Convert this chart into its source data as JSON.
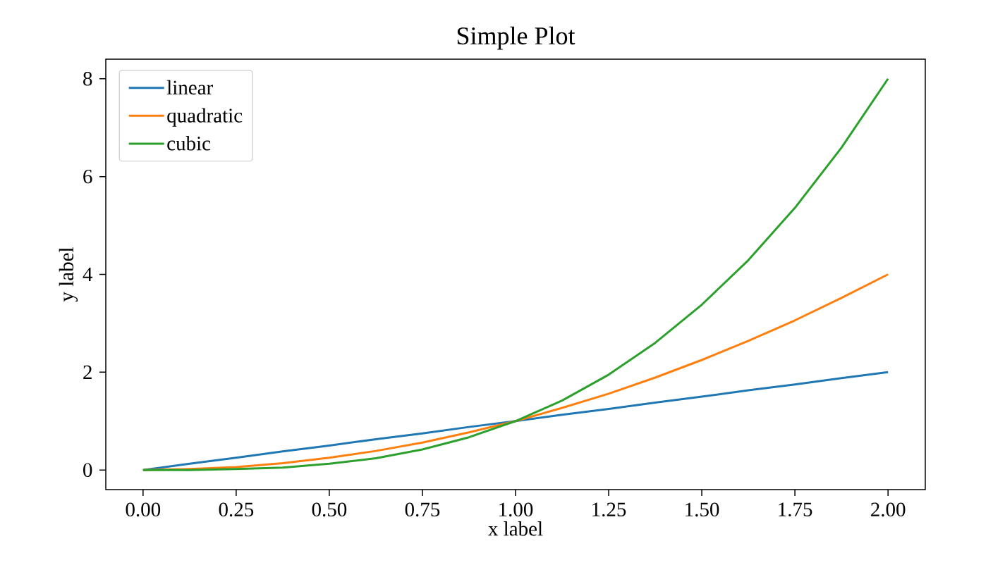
{
  "chart_data": {
    "type": "line",
    "title": "Simple Plot",
    "xlabel": "x label",
    "ylabel": "y label",
    "x": [
      0,
      0.125,
      0.25,
      0.375,
      0.5,
      0.625,
      0.75,
      0.875,
      1,
      1.125,
      1.25,
      1.375,
      1.5,
      1.625,
      1.75,
      1.875,
      2
    ],
    "series": [
      {
        "name": "linear",
        "color": "#1f77b4",
        "values": [
          0,
          0.13,
          0.25,
          0.38,
          0.5,
          0.63,
          0.75,
          0.88,
          1,
          1.13,
          1.25,
          1.38,
          1.5,
          1.63,
          1.75,
          1.88,
          2
        ]
      },
      {
        "name": "quadratic",
        "color": "#ff7f0e",
        "values": [
          0,
          0.02,
          0.06,
          0.14,
          0.25,
          0.39,
          0.56,
          0.77,
          1,
          1.27,
          1.56,
          1.89,
          2.25,
          2.64,
          3.06,
          3.52,
          4
        ]
      },
      {
        "name": "cubic",
        "color": "#2ca02c",
        "values": [
          0,
          0,
          0.02,
          0.05,
          0.13,
          0.24,
          0.42,
          0.67,
          1,
          1.42,
          1.95,
          2.6,
          3.38,
          4.29,
          5.36,
          6.59,
          8
        ]
      }
    ],
    "xlim": [
      -0.1,
      2.1
    ],
    "ylim": [
      -0.4,
      8.4
    ],
    "xticks": [
      {
        "value": 0,
        "label": "0.00"
      },
      {
        "value": 0.25,
        "label": "0.25"
      },
      {
        "value": 0.5,
        "label": "0.50"
      },
      {
        "value": 0.75,
        "label": "0.75"
      },
      {
        "value": 1,
        "label": "1.00"
      },
      {
        "value": 1.25,
        "label": "1.25"
      },
      {
        "value": 1.5,
        "label": "1.50"
      },
      {
        "value": 1.75,
        "label": "1.75"
      },
      {
        "value": 2,
        "label": "2.00"
      }
    ],
    "yticks": [
      0,
      2,
      4,
      6,
      8
    ],
    "grid": false,
    "legend": "top left",
    "marker": "none",
    "line_style": "solid"
  }
}
